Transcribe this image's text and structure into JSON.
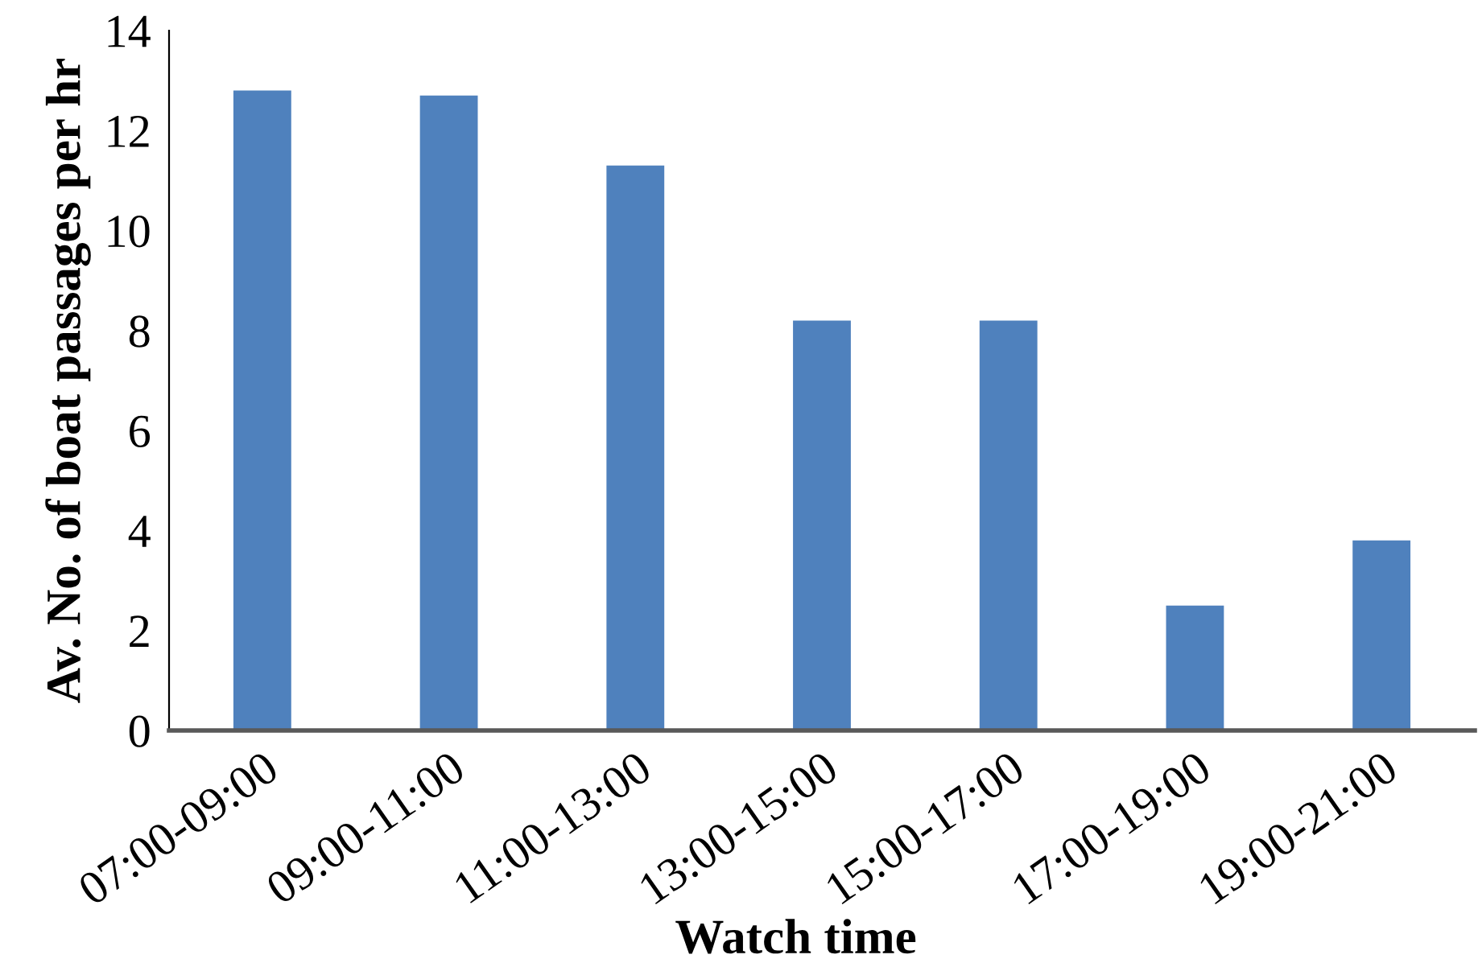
{
  "chart_data": {
    "type": "bar",
    "xlabel": "Watch time",
    "ylabel": "Av. No. of boat passages per hr",
    "categories": [
      "07:00-09:00",
      "09:00-11:00",
      "11:00-13:00",
      "13:00-15:00",
      "15:00-17:00",
      "17:00-19:00",
      "19:00-21:00"
    ],
    "values": [
      12.8,
      12.7,
      11.3,
      8.2,
      8.2,
      2.5,
      3.8
    ],
    "color": "#4f81bd",
    "ylim": [
      0,
      14
    ],
    "yticks": [
      0,
      2,
      4,
      6,
      8,
      10,
      12,
      14
    ],
    "grid": false,
    "legend": false
  }
}
